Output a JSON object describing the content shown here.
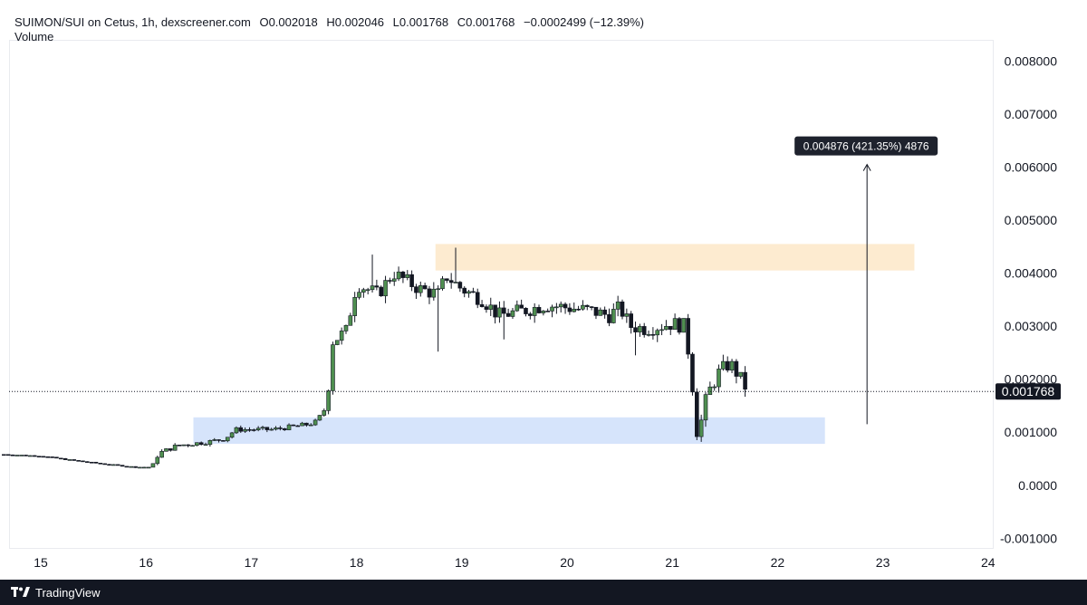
{
  "header": {
    "title": "SUIMON/SUI on Cetus, 1h, dexscreener.com",
    "open": "O0.002018",
    "high": "H0.002046",
    "low": "L0.001768",
    "close": "C0.001768",
    "change": "−0.0002499 (−12.39%)",
    "volume_label": "Volume"
  },
  "price_badge": "0.001768",
  "measure_label": "0.004876 (421.35%) 4876",
  "footer": {
    "brand": "TradingView",
    "brand_icon": "tradingview-logo-icon"
  },
  "colors": {
    "up": "#4f8f50",
    "down": "#131722",
    "supply_zone": "#fdebd0",
    "demand_zone": "#d6e4fb"
  },
  "chart_data": {
    "type": "candlestick",
    "ylim": [
      -0.0012,
      0.0084
    ],
    "y_ticks": [
      "0.008000",
      "0.007000",
      "0.006000",
      "0.005000",
      "0.004000",
      "0.003000",
      "0.002000",
      "0.001000",
      "0.0000",
      "-0.001000"
    ],
    "x_ticks": [
      "15",
      "16",
      "17",
      "18",
      "19",
      "20",
      "21",
      "22",
      "23",
      "24"
    ],
    "last_price": 0.001768,
    "zones": [
      {
        "name": "supply",
        "x0": 18.75,
        "x1": 23.3,
        "y0": 0.00405,
        "y1": 0.00455
      },
      {
        "name": "demand",
        "x0": 16.45,
        "x1": 22.45,
        "y0": 0.00078,
        "y1": 0.00128
      }
    ],
    "measure": {
      "x": 22.85,
      "from": 0.00115,
      "to": 0.00605
    },
    "anchors": [
      [
        14.65,
        0.00058
      ],
      [
        15.0,
        0.00055
      ],
      [
        15.3,
        0.00047
      ],
      [
        15.6,
        0.0004
      ],
      [
        15.9,
        0.00034
      ],
      [
        16.05,
        0.00034
      ],
      [
        16.12,
        0.0006
      ],
      [
        16.3,
        0.00075
      ],
      [
        16.6,
        0.00082
      ],
      [
        16.75,
        0.00088
      ],
      [
        16.85,
        0.00105
      ],
      [
        17.2,
        0.00105
      ],
      [
        17.55,
        0.00115
      ],
      [
        17.62,
        0.0012
      ],
      [
        17.72,
        0.0015
      ],
      [
        17.76,
        0.0027
      ],
      [
        17.9,
        0.0029
      ],
      [
        18.0,
        0.0038
      ],
      [
        18.2,
        0.0036
      ],
      [
        18.35,
        0.004
      ],
      [
        18.6,
        0.0037
      ],
      [
        18.78,
        0.0036
      ],
      [
        18.85,
        0.00395
      ],
      [
        19.0,
        0.0037
      ],
      [
        19.2,
        0.0035
      ],
      [
        19.35,
        0.0032
      ],
      [
        19.6,
        0.0033
      ],
      [
        19.8,
        0.0034
      ],
      [
        20.2,
        0.0033
      ],
      [
        20.4,
        0.0032
      ],
      [
        20.5,
        0.00335
      ],
      [
        20.6,
        0.003
      ],
      [
        20.75,
        0.00295
      ],
      [
        21.0,
        0.00305
      ],
      [
        21.12,
        0.003
      ],
      [
        21.18,
        0.0021
      ],
      [
        21.24,
        0.0009
      ],
      [
        21.33,
        0.0017
      ],
      [
        21.45,
        0.00215
      ],
      [
        21.55,
        0.0023
      ],
      [
        21.65,
        0.002
      ],
      [
        21.72,
        0.00177
      ]
    ],
    "wick_outliers": [
      {
        "x": 18.78,
        "low": 0.00252
      },
      {
        "x": 18.95,
        "high": 0.00448
      },
      {
        "x": 19.42,
        "low": 0.00275
      },
      {
        "x": 20.65,
        "low": 0.00245
      },
      {
        "x": 21.24,
        "low": 0.00085
      },
      {
        "x": 18.17,
        "high": 0.00435
      }
    ]
  }
}
